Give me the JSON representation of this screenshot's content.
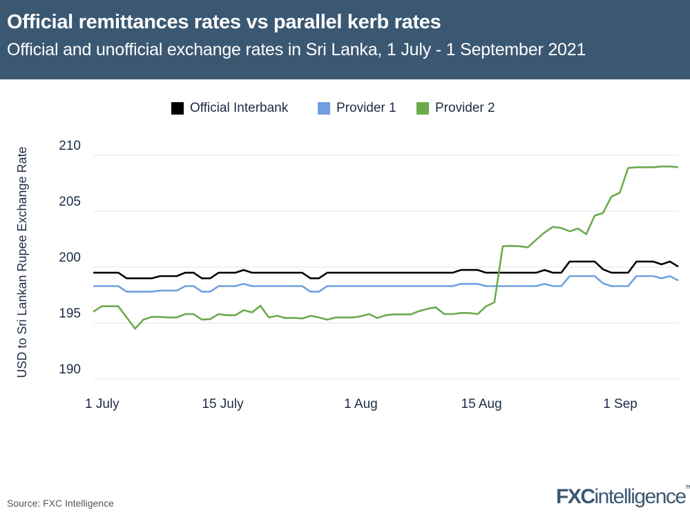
{
  "header": {
    "title": "Official remittances rates vs parallel kerb rates",
    "subtitle": "Official and unofficial exchange rates in Sri Lanka, 1 July - 1 September 2021"
  },
  "footer": {
    "source": "Source: FXC Intelligence",
    "logo_text": "FXCintelligence",
    "logo_bold": "FXC",
    "logo_light": "intelligence",
    "logo_tm": "TM"
  },
  "colors": {
    "header_bg": "#3b5873",
    "official_interbank": "#000000",
    "provider_1": "#6f9fe0",
    "provider_2": "#6aaa4b",
    "grid": "#e3e3e3"
  },
  "chart_data": {
    "type": "line",
    "title": "Official remittances rates vs parallel kerb rates",
    "subtitle": "Official and unofficial exchange rates in Sri Lanka, 1 July - 1 September 2021",
    "xlabel": "",
    "ylabel": "USD to Sri Lankan Rupee Exchange Rate",
    "ylim": [
      190,
      210
    ],
    "yticks": [
      190,
      195,
      200,
      205,
      210
    ],
    "xticks": [
      {
        "date": "2021-07-01",
        "label": "1 July"
      },
      {
        "date": "2021-07-15",
        "label": "15 July"
      },
      {
        "date": "2021-08-01",
        "label": "1 Aug"
      },
      {
        "date": "2021-08-15",
        "label": "15 Aug"
      },
      {
        "date": "2021-09-01",
        "label": "1 Sep"
      }
    ],
    "grid": true,
    "legend_position": "top",
    "x": [
      "2021-07-01",
      "2021-07-02",
      "2021-07-03",
      "2021-07-04",
      "2021-07-05",
      "2021-07-06",
      "2021-07-07",
      "2021-07-08",
      "2021-07-09",
      "2021-07-10",
      "2021-07-11",
      "2021-07-12",
      "2021-07-13",
      "2021-07-14",
      "2021-07-15",
      "2021-07-16",
      "2021-07-17",
      "2021-07-18",
      "2021-07-19",
      "2021-07-20",
      "2021-07-21",
      "2021-07-22",
      "2021-07-23",
      "2021-07-24",
      "2021-07-25",
      "2021-07-26",
      "2021-07-27",
      "2021-07-28",
      "2021-07-29",
      "2021-07-30",
      "2021-07-31",
      "2021-08-01",
      "2021-08-02",
      "2021-08-03",
      "2021-08-04",
      "2021-08-05",
      "2021-08-06",
      "2021-08-07",
      "2021-08-08",
      "2021-08-09",
      "2021-08-10",
      "2021-08-11",
      "2021-08-12",
      "2021-08-13",
      "2021-08-14",
      "2021-08-15",
      "2021-08-16",
      "2021-08-17",
      "2021-08-18",
      "2021-08-19",
      "2021-08-20",
      "2021-08-21",
      "2021-08-22",
      "2021-08-23",
      "2021-08-24",
      "2021-08-25",
      "2021-08-26",
      "2021-08-27",
      "2021-08-28",
      "2021-08-29",
      "2021-08-30",
      "2021-08-31",
      "2021-09-01",
      "2021-09-02",
      "2021-09-03",
      "2021-09-04",
      "2021-09-05",
      "2021-09-06",
      "2021-09-07",
      "2021-09-08",
      "2021-09-09"
    ],
    "series": [
      {
        "name": "Official Interbank",
        "color": "#000000",
        "values": [
          199.5,
          199.5,
          199.5,
          199.5,
          199.0,
          199.0,
          199.0,
          199.0,
          199.2,
          199.2,
          199.2,
          199.5,
          199.5,
          199.0,
          199.0,
          199.5,
          199.5,
          199.5,
          199.75,
          199.5,
          199.5,
          199.5,
          199.5,
          199.5,
          199.5,
          199.5,
          199.0,
          199.0,
          199.5,
          199.5,
          199.5,
          199.5,
          199.5,
          199.5,
          199.5,
          199.5,
          199.5,
          199.5,
          199.5,
          199.5,
          199.5,
          199.5,
          199.5,
          199.5,
          199.75,
          199.75,
          199.75,
          199.5,
          199.5,
          199.5,
          199.5,
          199.5,
          199.5,
          199.5,
          199.75,
          199.5,
          199.5,
          200.5,
          200.5,
          200.5,
          200.5,
          199.8,
          199.5,
          199.5,
          199.5,
          200.5,
          200.5,
          200.5,
          200.25,
          200.5,
          200.05
        ]
      },
      {
        "name": "Provider 1",
        "color": "#6f9fe0",
        "values": [
          198.3,
          198.3,
          198.3,
          198.3,
          197.8,
          197.8,
          197.8,
          197.8,
          197.9,
          197.9,
          197.9,
          198.3,
          198.3,
          197.8,
          197.8,
          198.3,
          198.3,
          198.3,
          198.5,
          198.3,
          198.3,
          198.3,
          198.3,
          198.3,
          198.3,
          198.3,
          197.8,
          197.8,
          198.3,
          198.3,
          198.3,
          198.3,
          198.3,
          198.3,
          198.3,
          198.3,
          198.3,
          198.3,
          198.3,
          198.3,
          198.3,
          198.3,
          198.3,
          198.3,
          198.5,
          198.5,
          198.5,
          198.3,
          198.3,
          198.3,
          198.3,
          198.3,
          198.3,
          198.3,
          198.5,
          198.3,
          198.3,
          199.2,
          199.2,
          199.2,
          199.2,
          198.55,
          198.3,
          198.3,
          198.3,
          199.2,
          199.2,
          199.2,
          199.0,
          199.2,
          198.8
        ]
      },
      {
        "name": "Provider 2",
        "color": "#6aaa4b",
        "values": [
          196.0,
          196.5,
          196.5,
          196.5,
          195.5,
          194.5,
          195.3,
          195.55,
          195.55,
          195.5,
          195.5,
          195.8,
          195.8,
          195.3,
          195.35,
          195.8,
          195.7,
          195.7,
          196.15,
          195.95,
          196.55,
          195.5,
          195.65,
          195.45,
          195.47,
          195.4,
          195.65,
          195.5,
          195.3,
          195.5,
          195.5,
          195.5,
          195.6,
          195.8,
          195.45,
          195.7,
          195.78,
          195.78,
          195.78,
          196.07,
          196.27,
          196.4,
          195.8,
          195.8,
          195.9,
          195.9,
          195.8,
          196.5,
          196.85,
          201.87,
          201.9,
          201.87,
          201.77,
          202.45,
          203.1,
          203.6,
          203.5,
          203.2,
          203.45,
          202.95,
          204.6,
          204.85,
          206.3,
          206.65,
          208.87,
          208.93,
          208.93,
          208.93,
          209.0,
          209.0,
          208.93
        ]
      }
    ]
  }
}
